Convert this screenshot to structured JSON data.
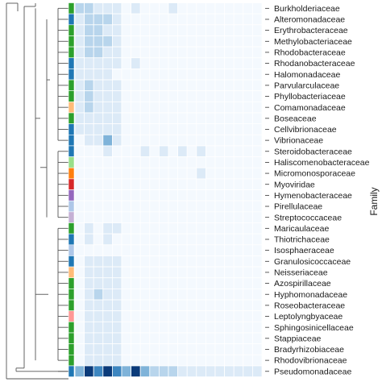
{
  "chart_data": {
    "type": "heatmap",
    "ylabel": "Family",
    "colors": {
      "background": "#f4f9fe",
      "gridline": "#ffffff",
      "scale": [
        "#f4f9fe",
        "#dceaf7",
        "#b8d5ec",
        "#7fb3d9",
        "#3d86c0",
        "#0b3b7a"
      ]
    },
    "families": [
      "Burkholderiaceae",
      "Alteromonadaceae",
      "Erythrobacteraceae",
      "Methylobacteriaceae",
      "Rhodobacteraceae",
      "Rhodanobacteraceae",
      "Halomonadaceae",
      "Parvularculaceae",
      "Phyllobacteriaceae",
      "Comamonadaceae",
      "Boseaceae",
      "Cellvibrionaceae",
      "Vibrionaceae",
      "Steroidobacteraceae",
      "Haliscomenobacteraceae",
      "Micromonosporaceae",
      "Myoviridae",
      "Hymenobacteraceae",
      "Pirellulaceae",
      "Streptococcaceae",
      "Maricaulaceae",
      "Thiotrichaceae",
      "Isosphaeraceae",
      "Granulosicoccaceae",
      "Neisseriaceae",
      "Azospirillaceae",
      "Hyphomonadaceae",
      "Roseobacteraceae",
      "Leptolyngbyaceae",
      "Sphingosinicellaceae",
      "Stappiaceae",
      "Bradyrhizobiaceae",
      "Rhodovibrionaceae",
      "Pseudomonadaceae"
    ],
    "annotation_colors": [
      "#2ca02c",
      "#1f77b4",
      "#2ca02c",
      "#2ca02c",
      "#2ca02c",
      "#1f77b4",
      "#1f77b4",
      "#2ca02c",
      "#2ca02c",
      "#ffbb78",
      "#2ca02c",
      "#1f77b4",
      "#1f77b4",
      "#1f77b4",
      "#98df8a",
      "#ff7f0e",
      "#d62728",
      "#9467bd",
      "#aec7e8",
      "#c5b0d5",
      "#2ca02c",
      "#1f77b4",
      "#aec7e8",
      "#1f77b4",
      "#ffbb78",
      "#2ca02c",
      "#2ca02c",
      "#2ca02c",
      "#ff9896",
      "#2ca02c",
      "#2ca02c",
      "#2ca02c",
      "#2ca02c",
      "#1f77b4"
    ],
    "values": [
      [
        2,
        2,
        1,
        1,
        1,
        0,
        1,
        0,
        0,
        0,
        1,
        0,
        0,
        0,
        0,
        0,
        0,
        0,
        0,
        0
      ],
      [
        1,
        2,
        2,
        2,
        1,
        0,
        0,
        0,
        0,
        0,
        0,
        0,
        0,
        0,
        0,
        0,
        0,
        0,
        0,
        0
      ],
      [
        1,
        2,
        2,
        1,
        1,
        0,
        0,
        0,
        0,
        0,
        0,
        0,
        0,
        0,
        0,
        0,
        0,
        0,
        0,
        0
      ],
      [
        1,
        2,
        2,
        2,
        1,
        0,
        0,
        0,
        0,
        0,
        0,
        0,
        0,
        0,
        0,
        0,
        0,
        0,
        0,
        0
      ],
      [
        1,
        2,
        2,
        1,
        1,
        0,
        0,
        0,
        0,
        0,
        0,
        0,
        0,
        0,
        0,
        0,
        0,
        0,
        0,
        0
      ],
      [
        1,
        1,
        1,
        1,
        1,
        0,
        1,
        0,
        0,
        0,
        0,
        0,
        0,
        0,
        0,
        0,
        0,
        0,
        0,
        0
      ],
      [
        1,
        1,
        1,
        1,
        0,
        0,
        0,
        0,
        0,
        0,
        0,
        0,
        0,
        0,
        0,
        0,
        0,
        0,
        0,
        0
      ],
      [
        1,
        2,
        1,
        1,
        1,
        0,
        0,
        0,
        0,
        0,
        0,
        0,
        0,
        0,
        0,
        0,
        0,
        0,
        0,
        0
      ],
      [
        1,
        2,
        1,
        1,
        1,
        0,
        0,
        0,
        0,
        0,
        0,
        0,
        0,
        0,
        0,
        0,
        0,
        0,
        0,
        0
      ],
      [
        1,
        2,
        1,
        1,
        1,
        0,
        0,
        0,
        0,
        0,
        0,
        0,
        0,
        0,
        0,
        0,
        0,
        0,
        0,
        0
      ],
      [
        1,
        1,
        1,
        1,
        1,
        0,
        0,
        0,
        0,
        0,
        0,
        0,
        0,
        0,
        0,
        0,
        0,
        0,
        0,
        0
      ],
      [
        1,
        1,
        1,
        1,
        1,
        0,
        0,
        0,
        0,
        0,
        0,
        0,
        0,
        0,
        0,
        0,
        0,
        0,
        0,
        0
      ],
      [
        0,
        1,
        1,
        3,
        1,
        0,
        0,
        0,
        0,
        0,
        0,
        0,
        0,
        0,
        0,
        0,
        0,
        0,
        0,
        0
      ],
      [
        0,
        0,
        0,
        1,
        0,
        0,
        0,
        1,
        0,
        1,
        0,
        1,
        0,
        1,
        0,
        0,
        0,
        0,
        0,
        0
      ],
      [
        0,
        0,
        0,
        0,
        0,
        0,
        0,
        0,
        0,
        0,
        0,
        0,
        0,
        0,
        0,
        0,
        0,
        0,
        0,
        0
      ],
      [
        0,
        0,
        0,
        0,
        0,
        0,
        0,
        0,
        0,
        0,
        0,
        0,
        0,
        1,
        0,
        0,
        0,
        0,
        0,
        0
      ],
      [
        0,
        0,
        0,
        0,
        0,
        0,
        0,
        0,
        0,
        0,
        0,
        0,
        0,
        0,
        0,
        0,
        0,
        0,
        0,
        0
      ],
      [
        0,
        0,
        0,
        0,
        0,
        0,
        0,
        0,
        0,
        0,
        0,
        0,
        0,
        0,
        0,
        0,
        0,
        0,
        0,
        0
      ],
      [
        0,
        0,
        0,
        0,
        0,
        0,
        0,
        0,
        0,
        0,
        0,
        0,
        0,
        0,
        0,
        0,
        0,
        0,
        0,
        0
      ],
      [
        0,
        0,
        0,
        0,
        0,
        0,
        0,
        0,
        0,
        0,
        0,
        0,
        0,
        0,
        0,
        0,
        0,
        0,
        0,
        0
      ],
      [
        0,
        1,
        0,
        1,
        1,
        0,
        0,
        0,
        0,
        0,
        0,
        0,
        0,
        0,
        0,
        0,
        0,
        0,
        0,
        0
      ],
      [
        0,
        1,
        0,
        1,
        0,
        0,
        0,
        0,
        0,
        0,
        0,
        0,
        0,
        0,
        0,
        0,
        0,
        0,
        0,
        0
      ],
      [
        0,
        0,
        0,
        0,
        0,
        0,
        0,
        0,
        0,
        0,
        0,
        0,
        0,
        0,
        0,
        0,
        0,
        0,
        0,
        0
      ],
      [
        0,
        1,
        1,
        1,
        1,
        0,
        0,
        0,
        0,
        0,
        0,
        0,
        0,
        0,
        0,
        0,
        0,
        0,
        0,
        0
      ],
      [
        0,
        1,
        1,
        1,
        1,
        0,
        0,
        0,
        0,
        0,
        0,
        0,
        0,
        0,
        0,
        0,
        0,
        0,
        0,
        0
      ],
      [
        0,
        1,
        1,
        1,
        1,
        0,
        0,
        0,
        0,
        0,
        0,
        0,
        0,
        0,
        0,
        0,
        0,
        0,
        0,
        0
      ],
      [
        0,
        1,
        2,
        1,
        1,
        0,
        0,
        0,
        0,
        0,
        0,
        0,
        0,
        0,
        0,
        0,
        0,
        0,
        0,
        0
      ],
      [
        0,
        1,
        1,
        1,
        1,
        0,
        0,
        0,
        0,
        0,
        0,
        0,
        0,
        0,
        0,
        0,
        0,
        0,
        0,
        0
      ],
      [
        0,
        1,
        1,
        1,
        1,
        0,
        0,
        0,
        0,
        0,
        0,
        0,
        0,
        0,
        0,
        0,
        0,
        0,
        0,
        0
      ],
      [
        0,
        1,
        1,
        1,
        1,
        0,
        0,
        0,
        0,
        0,
        0,
        0,
        0,
        0,
        0,
        0,
        0,
        0,
        0,
        0
      ],
      [
        0,
        1,
        1,
        1,
        1,
        0,
        0,
        0,
        0,
        0,
        0,
        0,
        0,
        0,
        0,
        0,
        0,
        0,
        0,
        0
      ],
      [
        0,
        1,
        1,
        1,
        1,
        0,
        0,
        0,
        0,
        0,
        0,
        0,
        0,
        0,
        0,
        0,
        0,
        0,
        0,
        0
      ],
      [
        0,
        1,
        1,
        1,
        1,
        0,
        0,
        0,
        0,
        0,
        0,
        0,
        0,
        0,
        0,
        0,
        0,
        0,
        0,
        0
      ],
      [
        3,
        5,
        4,
        5,
        4,
        3,
        5,
        3,
        2,
        2,
        2,
        1,
        1,
        1,
        1,
        1,
        1,
        1,
        1,
        1
      ]
    ]
  }
}
